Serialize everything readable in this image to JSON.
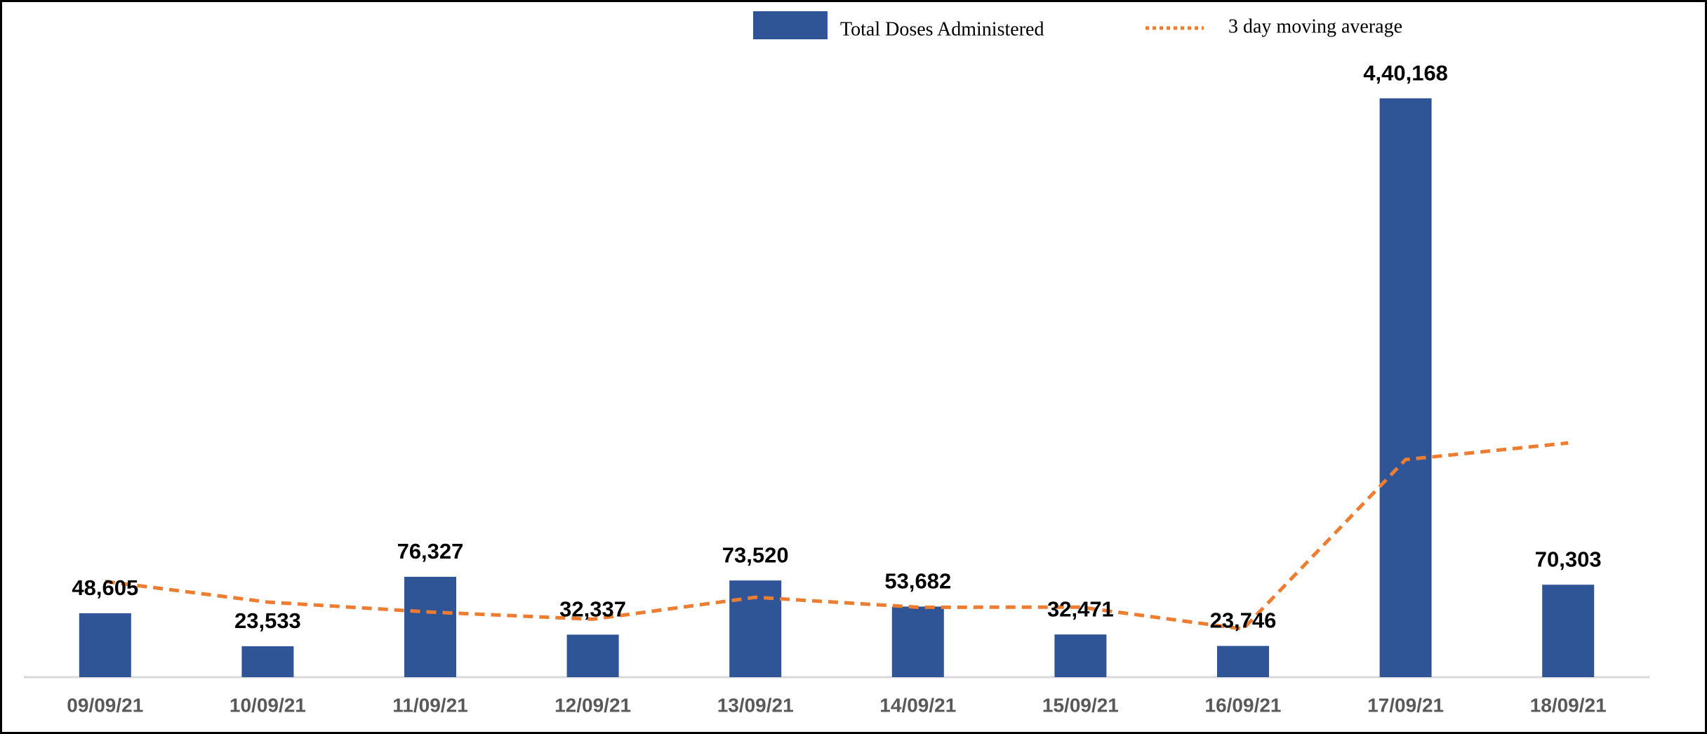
{
  "chart_data": {
    "type": "bar",
    "categories": [
      "09/09/21",
      "10/09/21",
      "11/09/21",
      "12/09/21",
      "13/09/21",
      "14/09/21",
      "15/09/21",
      "16/09/21",
      "17/09/21",
      "18/09/21"
    ],
    "ylim": [
      0,
      500000
    ],
    "series": [
      {
        "name": "Total Doses Administered",
        "color": "#2f5597",
        "type": "bar",
        "values": [
          48605,
          23533,
          76327,
          32337,
          73520,
          53682,
          32471,
          23746,
          440168,
          70303
        ],
        "value_labels": [
          "48,605",
          "23,533",
          "76,327",
          "32,337",
          "73,520",
          "53,682",
          "32,471",
          "23,746",
          "4,40,168",
          "70,303"
        ]
      },
      {
        "name": "3 day moving average",
        "color": "#ed7d31",
        "type": "line",
        "values": [
          72800,
          57100,
          49488,
          44066,
          60728,
          53180,
          53224,
          36633,
          165462,
          178072
        ]
      }
    ],
    "legend": "top"
  }
}
